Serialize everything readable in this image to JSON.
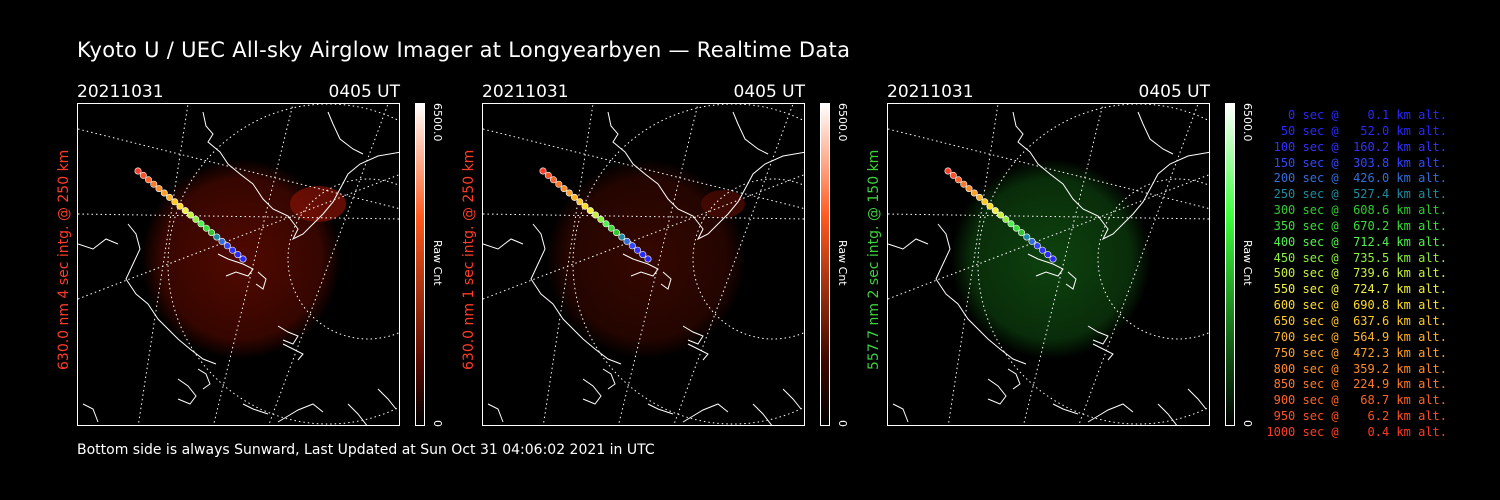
{
  "title": "Kyoto U / UEC All-sky Airglow Imager at Longyearbyen — Realtime Data",
  "footer": "Bottom side is always Sunward, Last Updated at Sun Oct 31 04:06:02 2021 in UTC",
  "panels": [
    {
      "date": "20211031",
      "time": "0405 UT",
      "label": "630.0 nm 4 sec intg. @ 250 km",
      "label_color": "#ff3c28",
      "colorbar_max": "6500.0",
      "colorbar_min": "0",
      "colorbar_unit": "Raw Cnt",
      "color": "#ff5a1e",
      "glow_color": "#5a0a00"
    },
    {
      "date": "20211031",
      "time": "0405 UT",
      "label": "630.0 nm 1 sec intg. @ 250 km",
      "label_color": "#ff3c28",
      "colorbar_max": "6500.0",
      "colorbar_min": "0",
      "colorbar_unit": "Raw Cnt",
      "color": "#ff5a1e",
      "glow_color": "#3c0800"
    },
    {
      "date": "20211031",
      "time": "0405 UT",
      "label": "557.7 nm 2 sec intg. @ 150 km",
      "label_color": "#3cd23c",
      "colorbar_max": "6500.0",
      "colorbar_min": "0",
      "colorbar_unit": "Raw Cnt",
      "color": "#3cff3c",
      "glow_color": "#0f4a10"
    }
  ],
  "legend": [
    {
      "text": "   0 sec @    0.1 km alt.",
      "color": "#2828ff"
    },
    {
      "text": "  50 sec @   52.0 km alt.",
      "color": "#2828ff"
    },
    {
      "text": " 100 sec @  160.2 km alt.",
      "color": "#3232ff"
    },
    {
      "text": " 150 sec @  303.8 km alt.",
      "color": "#3246ff"
    },
    {
      "text": " 200 sec @  426.0 km alt.",
      "color": "#326edc"
    },
    {
      "text": " 250 sec @  527.4 km alt.",
      "color": "#1e8ca0"
    },
    {
      "text": " 300 sec @  608.6 km alt.",
      "color": "#32c832"
    },
    {
      "text": " 350 sec @  670.2 km alt.",
      "color": "#3cdc3c"
    },
    {
      "text": " 400 sec @  712.4 km alt.",
      "color": "#50f050"
    },
    {
      "text": " 450 sec @  735.5 km alt.",
      "color": "#8cf03c"
    },
    {
      "text": " 500 sec @  739.6 km alt.",
      "color": "#c8f03c"
    },
    {
      "text": " 550 sec @  724.7 km alt.",
      "color": "#f0f03c"
    },
    {
      "text": " 600 sec @  690.8 km alt.",
      "color": "#ffdc28"
    },
    {
      "text": " 650 sec @  637.6 km alt.",
      "color": "#ffc828"
    },
    {
      "text": " 700 sec @  564.9 km alt.",
      "color": "#ffb428"
    },
    {
      "text": " 750 sec @  472.3 km alt.",
      "color": "#ffa028"
    },
    {
      "text": " 800 sec @  359.2 km alt.",
      "color": "#ff8c28"
    },
    {
      "text": " 850 sec @  224.9 km alt.",
      "color": "#ff7828"
    },
    {
      "text": " 900 sec @   68.7 km alt.",
      "color": "#ff6428"
    },
    {
      "text": " 950 sec @    6.2 km alt.",
      "color": "#ff5028"
    },
    {
      "text": "1000 sec @    0.4 km alt.",
      "color": "#ff3c28"
    }
  ]
}
